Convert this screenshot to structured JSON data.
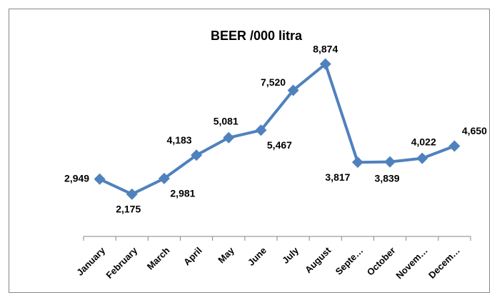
{
  "chart_data": {
    "type": "line",
    "title": "BEER /000 litra",
    "categories": [
      "January",
      "February",
      "March",
      "April",
      "May",
      "June",
      "July",
      "August",
      "Septe…",
      "October",
      "Novem…",
      "Decem…"
    ],
    "values": [
      2949,
      2175,
      2981,
      4183,
      5081,
      5467,
      7520,
      8874,
      3817,
      3839,
      4022,
      4650
    ],
    "value_labels": [
      "2,949",
      "2,175",
      "2,981",
      "4,183",
      "5,081",
      "5,467",
      "7,520",
      "8,874",
      "3,817",
      "3,839",
      "4,022",
      "4,650"
    ],
    "color": "#4f81bd",
    "ylim": [
      0,
      10000
    ]
  }
}
